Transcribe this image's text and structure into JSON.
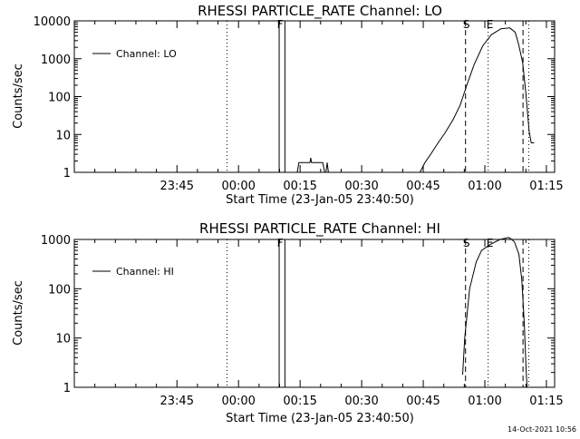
{
  "timestamp": "14-Oct-2021 10:56",
  "chart_data": [
    {
      "type": "line",
      "title": "RHESSI PARTICLE_RATE Channel: LO",
      "xlabel": "Start Time (23-Jan-05 23:40:50)",
      "ylabel": "Counts/sec",
      "y_scale": "log",
      "ylim": [
        1,
        10000
      ],
      "yticks": [
        1,
        10,
        100,
        1000,
        10000
      ],
      "ytick_labels": [
        "1",
        "10",
        "100",
        "1000",
        "10000"
      ],
      "xlim_minutes": [
        -20,
        97
      ],
      "xticks_minutes": [
        5,
        20,
        35,
        50,
        65,
        80,
        95
      ],
      "xtick_labels": [
        "23:45",
        "00:00",
        "00:15",
        "00:30",
        "00:45",
        "01:00",
        "01:15"
      ],
      "legend": {
        "label": "Channel: LO",
        "position": "top-left"
      },
      "markers": [
        {
          "label": "F",
          "minute": 29.9
        },
        {
          "label": "S",
          "minute": 75.3
        },
        {
          "label": "E",
          "minute": 81.0
        }
      ],
      "solid_lines_minutes": [
        29.9,
        31.3
      ],
      "dashed_lines_minutes": [
        75.3,
        89.3
      ],
      "dotted_lines_minutes": [
        17.2,
        80.8,
        90.7
      ],
      "series": [
        {
          "values": [
            [
              34.3,
              1
            ],
            [
              34.7,
              1.8
            ],
            [
              37.4,
              1.8
            ],
            [
              37.6,
              2.4
            ],
            [
              37.8,
              1.8
            ],
            [
              40.5,
              1.8
            ],
            [
              41.0,
              1
            ],
            [
              41.3,
              1
            ],
            [
              41.6,
              1.8
            ],
            [
              41.9,
              1
            ],
            [
              64.2,
              1
            ],
            [
              65.4,
              1.8
            ],
            [
              66.8,
              3
            ],
            [
              68.6,
              6
            ],
            [
              70.3,
              11
            ],
            [
              72.3,
              25
            ],
            [
              74.0,
              60
            ],
            [
              75.6,
              200
            ],
            [
              77.4,
              700
            ],
            [
              79.5,
              2200
            ],
            [
              81.6,
              4300
            ],
            [
              83.9,
              6200
            ],
            [
              86.1,
              6500
            ],
            [
              87.4,
              5000
            ],
            [
              88.2,
              2500
            ],
            [
              89.2,
              800
            ],
            [
              90.0,
              120
            ],
            [
              90.8,
              12
            ],
            [
              91.3,
              6
            ],
            [
              92.0,
              6
            ]
          ]
        }
      ]
    },
    {
      "type": "line",
      "title": "RHESSI PARTICLE_RATE Channel: HI",
      "xlabel": "Start Time (23-Jan-05 23:40:50)",
      "ylabel": "Counts/sec",
      "y_scale": "log",
      "ylim": [
        1,
        1000
      ],
      "yticks": [
        1,
        10,
        100,
        1000
      ],
      "ytick_labels": [
        "1",
        "10",
        "100",
        "1000"
      ],
      "xlim_minutes": [
        -20,
        97
      ],
      "xticks_minutes": [
        5,
        20,
        35,
        50,
        65,
        80,
        95
      ],
      "xtick_labels": [
        "23:45",
        "00:00",
        "00:15",
        "00:30",
        "00:45",
        "01:00",
        "01:15"
      ],
      "legend": {
        "label": "Channel: HI",
        "position": "top-left"
      },
      "markers": [
        {
          "label": "F",
          "minute": 29.9
        },
        {
          "label": "S",
          "minute": 75.3
        },
        {
          "label": "E",
          "minute": 81.0
        }
      ],
      "solid_lines_minutes": [
        29.9,
        31.3
      ],
      "dashed_lines_minutes": [
        75.3,
        89.3
      ],
      "dotted_lines_minutes": [
        17.2,
        80.8,
        90.7
      ],
      "series": [
        {
          "values": [
            [
              74.6,
              1.8
            ],
            [
              75.1,
              10
            ],
            [
              76.3,
              100
            ],
            [
              77.9,
              350
            ],
            [
              79.2,
              600
            ],
            [
              81.4,
              800
            ],
            [
              83.7,
              1000
            ],
            [
              85.9,
              1100
            ],
            [
              87.2,
              900
            ],
            [
              88.3,
              500
            ],
            [
              89.0,
              150
            ],
            [
              89.6,
              20
            ],
            [
              90.1,
              2
            ],
            [
              90.3,
              1
            ]
          ]
        }
      ]
    }
  ]
}
